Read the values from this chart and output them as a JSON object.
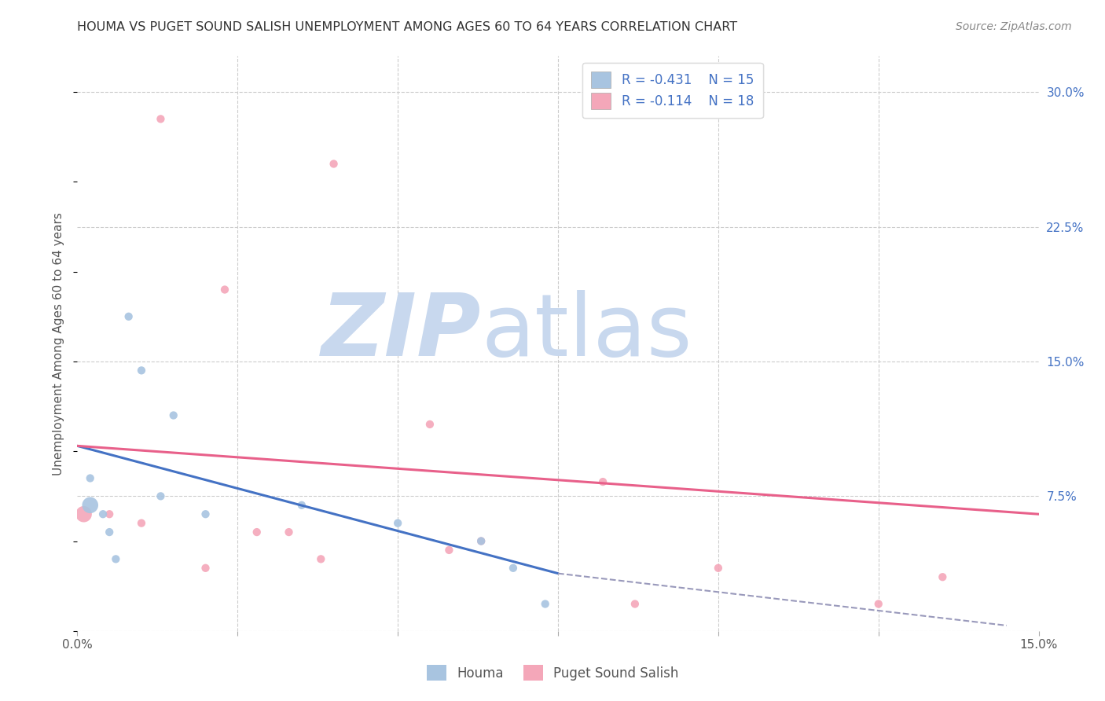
{
  "title": "HOUMA VS PUGET SOUND SALISH UNEMPLOYMENT AMONG AGES 60 TO 64 YEARS CORRELATION CHART",
  "source": "Source: ZipAtlas.com",
  "ylabel": "Unemployment Among Ages 60 to 64 years",
  "xlim": [
    0.0,
    0.15
  ],
  "ylim": [
    0.0,
    0.32
  ],
  "yticks_right": [
    0.0,
    0.075,
    0.15,
    0.225,
    0.3
  ],
  "yticklabels_right": [
    "",
    "7.5%",
    "15.0%",
    "22.5%",
    "30.0%"
  ],
  "houma_color": "#a8c4e0",
  "puget_color": "#f4a7b9",
  "houma_line_color": "#4472c4",
  "puget_line_color": "#e8608a",
  "dashed_line_color": "#9999bb",
  "watermark_zip": "ZIP",
  "watermark_atlas": "atlas",
  "watermark_color_zip": "#c8d8ee",
  "watermark_color_atlas": "#c8d8ee",
  "legend_R_houma": "-0.431",
  "legend_N_houma": "15",
  "legend_R_puget": "-0.114",
  "legend_N_puget": "18",
  "houma_x": [
    0.002,
    0.008,
    0.01,
    0.013,
    0.015,
    0.002,
    0.004,
    0.005,
    0.006,
    0.02,
    0.035,
    0.05,
    0.063,
    0.068,
    0.073
  ],
  "houma_y": [
    0.085,
    0.175,
    0.145,
    0.075,
    0.12,
    0.07,
    0.065,
    0.055,
    0.04,
    0.065,
    0.07,
    0.06,
    0.05,
    0.035,
    0.015
  ],
  "puget_x": [
    0.001,
    0.005,
    0.01,
    0.013,
    0.02,
    0.023,
    0.028,
    0.033,
    0.038,
    0.04,
    0.055,
    0.058,
    0.063,
    0.082,
    0.087,
    0.1,
    0.125,
    0.135
  ],
  "puget_y": [
    0.065,
    0.065,
    0.06,
    0.285,
    0.035,
    0.19,
    0.055,
    0.055,
    0.04,
    0.26,
    0.115,
    0.045,
    0.05,
    0.083,
    0.015,
    0.035,
    0.015,
    0.03
  ],
  "houma_large_idx": [
    5
  ],
  "puget_large_idx": [
    0
  ],
  "houma_size_default": 55,
  "houma_size_large": 220,
  "puget_size_default": 55,
  "puget_size_large": 220,
  "houma_line_x": [
    0.0,
    0.075
  ],
  "houma_line_y": [
    0.103,
    0.032
  ],
  "puget_line_x": [
    0.0,
    0.15
  ],
  "puget_line_y": [
    0.103,
    0.065
  ],
  "dash_line_x": [
    0.075,
    0.145
  ],
  "dash_line_y": [
    0.032,
    0.003
  ],
  "background_color": "#ffffff",
  "grid_color": "#cccccc"
}
